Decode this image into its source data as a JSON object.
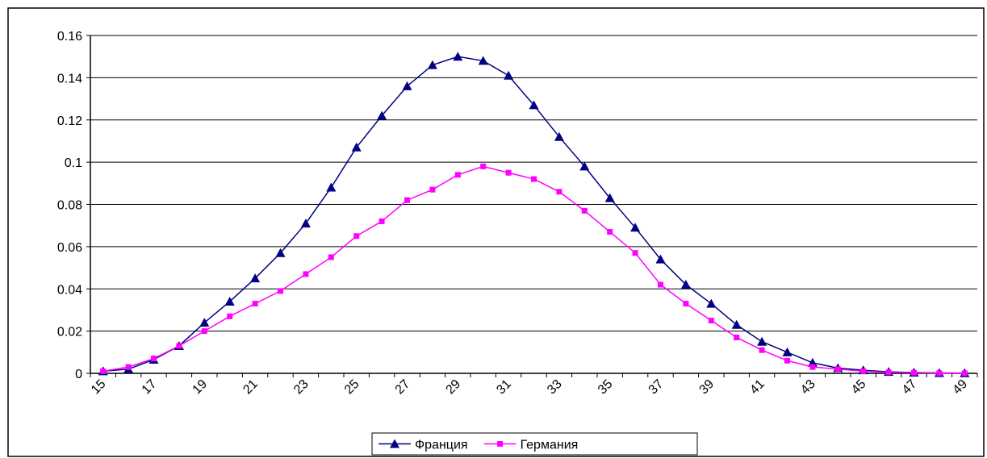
{
  "chart_data": {
    "type": "line",
    "categories": [
      15,
      null,
      17,
      null,
      19,
      null,
      21,
      null,
      23,
      null,
      25,
      null,
      27,
      null,
      29,
      null,
      31,
      null,
      33,
      null,
      35,
      null,
      37,
      null,
      39,
      null,
      41,
      null,
      43,
      null,
      45,
      null,
      47,
      null,
      49
    ],
    "series": [
      {
        "name": "Франция",
        "color": "#000080",
        "marker": "triangle",
        "values": [
          0.001,
          0.002,
          0.0065,
          0.013,
          0.024,
          0.034,
          0.045,
          0.057,
          0.071,
          0.088,
          0.107,
          0.122,
          0.136,
          0.146,
          0.15,
          0.148,
          0.141,
          0.127,
          0.112,
          0.098,
          0.083,
          0.069,
          0.054,
          0.042,
          0.033,
          0.023,
          0.015,
          0.01,
          0.005,
          0.0025,
          0.0015,
          0.0007,
          0.0004,
          0.0002,
          0.0001
        ]
      },
      {
        "name": "Германия",
        "color": "#ff00ff",
        "marker": "square",
        "values": [
          0.001,
          0.003,
          0.007,
          0.013,
          0.02,
          0.027,
          0.033,
          0.039,
          0.047,
          0.055,
          0.065,
          0.072,
          0.082,
          0.087,
          0.094,
          0.098,
          0.095,
          0.092,
          0.086,
          0.077,
          0.067,
          0.057,
          0.042,
          0.033,
          0.025,
          0.017,
          0.011,
          0.006,
          0.003,
          0.002,
          0.001,
          0.0005,
          0.0003,
          0.0001,
          0.0
        ]
      }
    ],
    "ylim": [
      0,
      0.16
    ],
    "yticks": [
      0,
      0.02,
      0.04,
      0.06,
      0.08,
      0.1,
      0.12,
      0.14,
      0.16
    ],
    "grid": true,
    "legend": "bottom"
  }
}
